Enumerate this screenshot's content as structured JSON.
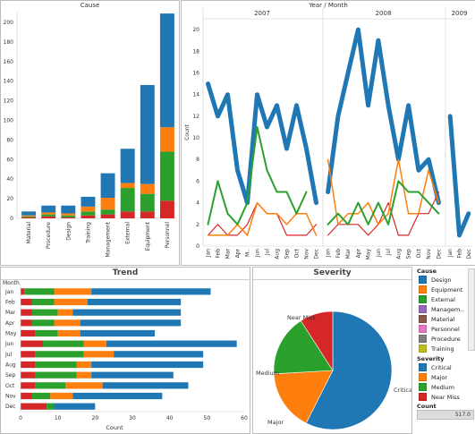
{
  "colors": {
    "Design": "#1f77b4",
    "Equipment": "#ff7f0e",
    "External": "#2ca02c",
    "Management": "#9467bd",
    "Material": "#8c564b",
    "Personnel": "#e377c2",
    "Procedure": "#7f7f7f",
    "Training": "#bcbd22",
    "Critical": "#1f77b4",
    "Major": "#ff7f0e",
    "Medium": "#2ca02c",
    "Near Miss": "#d62728"
  },
  "cause_panel": {
    "title": "Cause",
    "y_ticks": [
      "200",
      "180",
      "160",
      "140",
      "120",
      "100",
      "80",
      "60",
      "40",
      "20",
      "0"
    ],
    "categories": [
      "Material",
      "Procedure",
      "Design",
      "Training",
      "Management",
      "External",
      "Equipment",
      "Personnel"
    ]
  },
  "trend_line_panel": {
    "header": "Year  /  Month",
    "ylabel": "Count",
    "years": [
      "2007",
      "2008",
      "2009"
    ],
    "y_ticks": [
      "20",
      "18",
      "16",
      "14",
      "12",
      "10",
      "8",
      "6",
      "4",
      "2",
      "0"
    ],
    "months_2007": [
      "Jan",
      "Feb",
      "Mar",
      "Apr",
      "M..",
      "Jun",
      "Jul",
      "Aug",
      "Sep",
      "Oct",
      "Nov",
      "Dec"
    ],
    "months_2008": [
      "Jan",
      "Feb",
      "Mar",
      "Apr",
      "May",
      "Jun",
      "Jul",
      "Aug",
      "Sep",
      "Oct",
      "Nov",
      "Dec"
    ],
    "months_2009": [
      "Jan",
      "Feb",
      "Dec"
    ]
  },
  "trend_bar_panel": {
    "title": "Trend",
    "row_header": "Month",
    "months": [
      "Jan",
      "Feb",
      "Mar",
      "Apr",
      "May",
      "Jun",
      "Jul",
      "Aug",
      "Sep",
      "Oct",
      "Nov",
      "Dec"
    ],
    "x_ticks": [
      "0",
      "10",
      "20",
      "30",
      "40",
      "50",
      "60"
    ],
    "xlabel": "Count"
  },
  "severity_panel": {
    "title": "Severity",
    "labels": {
      "near_miss": "Near Miss",
      "medium": "Medium",
      "major": "Major",
      "critical": "Critical"
    }
  },
  "legend": {
    "cause_title": "Cause",
    "cause_items": [
      "Design",
      "Equipment",
      "External",
      "Managem..",
      "Material",
      "Personnel",
      "Procedure",
      "Training"
    ],
    "severity_title": "Severity",
    "severity_items": [
      "Critical",
      "Major",
      "Medium",
      "Near Miss"
    ],
    "count_title": "Count",
    "count_value": "517.0"
  },
  "chart_data": [
    {
      "type": "bar",
      "title": "Cause",
      "categories": [
        "Material",
        "Procedure",
        "Design",
        "Training",
        "Management",
        "External",
        "Equipment",
        "Personnel"
      ],
      "ylim": [
        0,
        210
      ],
      "series": [
        {
          "name": "Near Miss",
          "values": [
            1,
            2,
            1,
            3,
            4,
            7,
            7,
            18
          ]
        },
        {
          "name": "Medium",
          "values": [
            1,
            2,
            2,
            4,
            5,
            24,
            18,
            50
          ]
        },
        {
          "name": "Major",
          "values": [
            1,
            2,
            2,
            5,
            12,
            5,
            10,
            25
          ]
        },
        {
          "name": "Critical",
          "values": [
            4,
            7,
            8,
            10,
            25,
            35,
            101,
            116
          ]
        }
      ]
    },
    {
      "type": "line",
      "xlabel": "Year / Month",
      "ylabel": "Count",
      "ylim": [
        0,
        21
      ],
      "x": [
        "2007-Jan",
        "2007-Feb",
        "2007-Mar",
        "2007-Apr",
        "2007-May",
        "2007-Jun",
        "2007-Jul",
        "2007-Aug",
        "2007-Sep",
        "2007-Oct",
        "2007-Nov",
        "2007-Dec",
        "2008-Jan",
        "2008-Feb",
        "2008-Mar",
        "2008-Apr",
        "2008-May",
        "2008-Jun",
        "2008-Jul",
        "2008-Aug",
        "2008-Sep",
        "2008-Oct",
        "2008-Nov",
        "2008-Dec",
        "2009-Jan",
        "2009-Feb",
        "2009-Dec"
      ],
      "series": [
        {
          "name": "Critical",
          "values": [
            15,
            12,
            14,
            7,
            4,
            14,
            11,
            13,
            9,
            13,
            9,
            4,
            5,
            12,
            16,
            20,
            13,
            19,
            13,
            8,
            13,
            7,
            8,
            4,
            12,
            1,
            3
          ]
        },
        {
          "name": "Medium",
          "values": [
            2,
            6,
            3,
            2,
            4,
            11,
            7,
            5,
            5,
            3,
            5,
            null,
            2,
            3,
            2,
            4,
            2,
            4,
            2,
            6,
            5,
            5,
            4,
            3,
            null,
            null,
            null
          ]
        },
        {
          "name": "Major",
          "values": [
            1,
            1,
            1,
            2,
            1,
            4,
            3,
            3,
            2,
            3,
            3,
            1,
            8,
            2,
            3,
            3,
            4,
            2,
            3,
            8,
            3,
            3,
            7,
            4,
            2,
            null,
            null
          ]
        },
        {
          "name": "Near Miss",
          "values": [
            1,
            2,
            1,
            1,
            2,
            4,
            3,
            3,
            1,
            1,
            1,
            2,
            1,
            2,
            2,
            2,
            1,
            2,
            4,
            1,
            1,
            3,
            3,
            5,
            null,
            null,
            null
          ]
        }
      ]
    },
    {
      "type": "bar",
      "title": "Trend",
      "orientation": "horizontal",
      "categories": [
        "Jan",
        "Feb",
        "Mar",
        "Apr",
        "May",
        "Jun",
        "Jul",
        "Aug",
        "Sep",
        "Oct",
        "Nov",
        "Dec"
      ],
      "xlabel": "Count",
      "xlim": [
        0,
        60
      ],
      "series": [
        {
          "name": "Near Miss",
          "values": [
            1,
            3,
            3,
            3,
            4,
            6,
            4,
            4,
            4,
            4,
            3,
            7
          ]
        },
        {
          "name": "Medium",
          "values": [
            8,
            6,
            7,
            6,
            6,
            11,
            13,
            11,
            11,
            8,
            5,
            2
          ]
        },
        {
          "name": "Major",
          "values": [
            10,
            9,
            4,
            7,
            6,
            6,
            8,
            4,
            4,
            10,
            6,
            0
          ]
        },
        {
          "name": "Critical",
          "values": [
            32,
            25,
            29,
            27,
            20,
            35,
            24,
            30,
            22,
            23,
            24,
            11
          ]
        }
      ]
    },
    {
      "type": "pie",
      "title": "Severity",
      "categories": [
        "Critical",
        "Major",
        "Medium",
        "Near Miss"
      ],
      "values": [
        297,
        86,
        87,
        47
      ]
    }
  ]
}
